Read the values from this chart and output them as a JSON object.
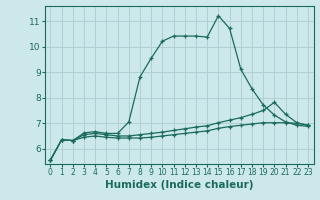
{
  "bg_color": "#cde8ea",
  "grid_color": "#b0d0d3",
  "line_color": "#1a6b5a",
  "xlabel": "Humidex (Indice chaleur)",
  "xlabel_fontsize": 7.5,
  "yticks": [
    6,
    7,
    8,
    9,
    10,
    11
  ],
  "xticks": [
    0,
    1,
    2,
    3,
    4,
    5,
    6,
    7,
    8,
    9,
    10,
    11,
    12,
    13,
    14,
    15,
    16,
    17,
    18,
    19,
    20,
    21,
    22,
    23
  ],
  "xlim": [
    -0.5,
    23.5
  ],
  "ylim": [
    5.4,
    11.6
  ],
  "lines": [
    {
      "x": [
        0,
        1,
        2,
        3,
        4,
        5,
        6,
        7,
        8,
        9,
        10,
        11,
        12,
        13,
        14,
        15,
        16,
        17,
        18,
        19,
        20,
        21,
        22,
        23
      ],
      "y": [
        5.55,
        6.35,
        6.32,
        6.62,
        6.67,
        6.6,
        6.6,
        7.05,
        8.82,
        9.55,
        10.22,
        10.42,
        10.42,
        10.42,
        10.38,
        11.22,
        10.72,
        9.12,
        8.35,
        7.72,
        7.32,
        7.05,
        6.92,
        6.88
      ],
      "marker": "+"
    },
    {
      "x": [
        0,
        1,
        2,
        3,
        4,
        5,
        6,
        7,
        8,
        9,
        10,
        11,
        12,
        13,
        14,
        15,
        16,
        17,
        18,
        19,
        20,
        21,
        22,
        23
      ],
      "y": [
        5.55,
        6.35,
        6.32,
        6.55,
        6.6,
        6.55,
        6.5,
        6.5,
        6.55,
        6.6,
        6.65,
        6.72,
        6.78,
        6.85,
        6.9,
        7.02,
        7.12,
        7.22,
        7.35,
        7.5,
        7.82,
        7.35,
        7.02,
        6.92
      ],
      "marker": "+"
    },
    {
      "x": [
        0,
        1,
        2,
        3,
        4,
        5,
        6,
        7,
        8,
        9,
        10,
        11,
        12,
        13,
        14,
        15,
        16,
        17,
        18,
        19,
        20,
        21,
        22,
        23
      ],
      "y": [
        5.55,
        6.35,
        6.32,
        6.45,
        6.5,
        6.45,
        6.42,
        6.42,
        6.42,
        6.45,
        6.5,
        6.55,
        6.6,
        6.65,
        6.7,
        6.8,
        6.87,
        6.92,
        6.97,
        7.02,
        7.02,
        7.02,
        7.0,
        6.92
      ],
      "marker": "+"
    }
  ]
}
